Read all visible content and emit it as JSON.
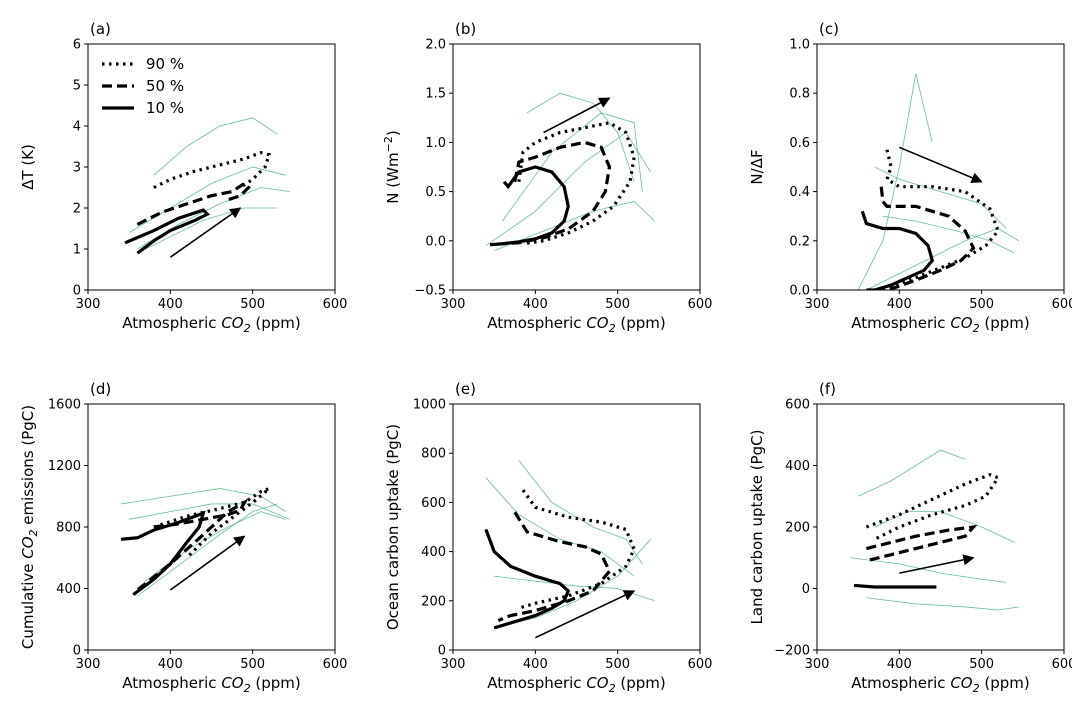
{
  "chart_data": [
    {
      "type": "line",
      "panel_label": "(a)",
      "x_label": [
        "Atmospheric ",
        "CO",
        "2",
        " (ppm)"
      ],
      "y_label": [
        "ΔT (K)"
      ],
      "xlim": [
        300,
        600
      ],
      "xticks": [
        300,
        400,
        500,
        600
      ],
      "ylim": [
        0,
        6
      ],
      "yticks": [
        0,
        1,
        2,
        3,
        4,
        5,
        6
      ],
      "legend": "upper left",
      "ensemble_color": "#4db380",
      "ensemble": [
        {
          "x": [
            350,
            400,
            450,
            500,
            540
          ],
          "y": [
            1.4,
            2.0,
            2.6,
            3.0,
            2.8
          ]
        },
        {
          "x": [
            360,
            410,
            460,
            510,
            545
          ],
          "y": [
            1.0,
            1.6,
            2.1,
            2.5,
            2.4
          ]
        },
        {
          "x": [
            380,
            420,
            460,
            500,
            530
          ],
          "y": [
            2.8,
            3.5,
            4.0,
            4.2,
            3.8
          ]
        },
        {
          "x": [
            360,
            400,
            440,
            490,
            530
          ],
          "y": [
            0.9,
            1.3,
            1.7,
            2.0,
            2.0
          ]
        }
      ],
      "series": [
        {
          "name": "90 %",
          "color": "#000000",
          "linestyle": "dotted",
          "x": [
            380,
            400,
            430,
            460,
            490,
            510,
            520,
            515,
            500,
            485
          ],
          "y": [
            2.5,
            2.7,
            2.9,
            3.05,
            3.2,
            3.35,
            3.3,
            3.0,
            2.7,
            2.5
          ]
        },
        {
          "name": "50 %",
          "color": "#000000",
          "linestyle": "dashed",
          "x": [
            360,
            390,
            420,
            450,
            475,
            490,
            495,
            485,
            470
          ],
          "y": [
            1.6,
            1.9,
            2.1,
            2.3,
            2.4,
            2.6,
            2.5,
            2.3,
            2.2
          ]
        },
        {
          "name": "10 %",
          "color": "#000000",
          "linestyle": "solid",
          "x": [
            345,
            380,
            410,
            440,
            445,
            430,
            400,
            380,
            360
          ],
          "y": [
            1.15,
            1.45,
            1.75,
            1.95,
            1.85,
            1.7,
            1.45,
            1.2,
            0.9
          ]
        }
      ]
    },
    {
      "type": "line",
      "panel_label": "(b)",
      "x_label": [
        "Atmospheric ",
        "CO",
        "2",
        " (ppm)"
      ],
      "y_label": [
        "N (Wm",
        "−2",
        ")"
      ],
      "xlim": [
        300,
        600
      ],
      "xticks": [
        300,
        400,
        500,
        600
      ],
      "ylim": [
        -0.5,
        2.0
      ],
      "yticks": [
        {
          "value": -0.5,
          "label": "−0.5"
        },
        {
          "value": 0,
          "label": "0.0"
        },
        0.5,
        {
          "value": 1,
          "label": "1.0"
        },
        1.5,
        {
          "value": 2,
          "label": "2.0"
        }
      ],
      "ensemble_color": "#4db380",
      "ensemble": [
        {
          "x": [
            340,
            400,
            460,
            510,
            540
          ],
          "y": [
            -0.05,
            0.3,
            0.8,
            1.1,
            0.7
          ]
        },
        {
          "x": [
            360,
            420,
            480,
            520,
            530
          ],
          "y": [
            0.2,
            0.9,
            1.3,
            1.2,
            0.5
          ]
        },
        {
          "x": [
            390,
            430,
            470,
            500,
            520
          ],
          "y": [
            1.3,
            1.5,
            1.4,
            1.1,
            0.6
          ]
        },
        {
          "x": [
            350,
            410,
            470,
            520,
            545
          ],
          "y": [
            -0.1,
            0.1,
            0.3,
            0.4,
            0.2
          ]
        }
      ],
      "series": [
        {
          "name": "90 %",
          "color": "#000000",
          "linestyle": "dotted",
          "x": [
            380,
            385,
            400,
            430,
            460,
            490,
            510,
            520,
            515,
            495,
            470,
            440,
            410,
            385
          ],
          "y": [
            0.6,
            0.9,
            1.0,
            1.1,
            1.15,
            1.2,
            1.1,
            0.85,
            0.6,
            0.35,
            0.2,
            0.08,
            0.0,
            -0.03
          ]
        },
        {
          "name": "50 %",
          "color": "#000000",
          "linestyle": "dashed",
          "x": [
            375,
            380,
            400,
            430,
            460,
            480,
            490,
            485,
            470,
            440,
            410,
            380,
            360
          ],
          "y": [
            0.6,
            0.8,
            0.85,
            0.95,
            1.0,
            0.95,
            0.75,
            0.5,
            0.3,
            0.12,
            0.03,
            -0.02,
            -0.03
          ]
        },
        {
          "name": "10 %",
          "color": "#000000",
          "linestyle": "solid",
          "x": [
            362,
            367,
            380,
            400,
            420,
            435,
            440,
            435,
            420,
            400,
            380,
            360,
            345
          ],
          "y": [
            0.6,
            0.55,
            0.7,
            0.75,
            0.7,
            0.55,
            0.35,
            0.2,
            0.08,
            0.02,
            -0.01,
            -0.03,
            -0.04
          ]
        }
      ]
    },
    {
      "type": "line",
      "panel_label": "(c)",
      "x_label": [
        "Atmospheric ",
        "CO",
        "2",
        " (ppm)"
      ],
      "y_label": [
        "N/ΔF"
      ],
      "xlim": [
        300,
        600
      ],
      "xticks": [
        300,
        400,
        500,
        600
      ],
      "ylim": [
        0,
        1
      ],
      "yticks": [
        {
          "value": 0,
          "label": "0.0"
        },
        0.2,
        0.4,
        0.6,
        0.8,
        {
          "value": 1,
          "label": "1.0"
        }
      ],
      "ensemble_color": "#4db380",
      "ensemble": [
        {
          "x": [
            350,
            380,
            400,
            420,
            440
          ],
          "y": [
            0.0,
            0.2,
            0.5,
            0.88,
            0.6
          ]
        },
        {
          "x": [
            360,
            420,
            480,
            520,
            545
          ],
          "y": [
            0.0,
            0.1,
            0.2,
            0.25,
            0.2
          ]
        },
        {
          "x": [
            370,
            400,
            450,
            500,
            530
          ],
          "y": [
            0.5,
            0.45,
            0.4,
            0.35,
            0.25
          ]
        },
        {
          "x": [
            380,
            420,
            470,
            510,
            540
          ],
          "y": [
            0.3,
            0.28,
            0.24,
            0.2,
            0.15
          ]
        }
      ],
      "series": [
        {
          "name": "90 %",
          "color": "#000000",
          "linestyle": "dotted",
          "x": [
            385,
            390,
            385,
            400,
            440,
            480,
            510,
            520,
            505,
            480,
            450,
            420,
            395,
            380
          ],
          "y": [
            0.57,
            0.5,
            0.45,
            0.42,
            0.42,
            0.4,
            0.33,
            0.24,
            0.18,
            0.13,
            0.09,
            0.05,
            0.02,
            0.0
          ]
        },
        {
          "name": "50 %",
          "color": "#000000",
          "linestyle": "dashed",
          "x": [
            378,
            380,
            385,
            420,
            460,
            480,
            490,
            475,
            450,
            420,
            395,
            375
          ],
          "y": [
            0.42,
            0.36,
            0.34,
            0.34,
            0.3,
            0.24,
            0.17,
            0.12,
            0.08,
            0.04,
            0.01,
            0.0
          ]
        },
        {
          "name": "10 %",
          "color": "#000000",
          "linestyle": "solid",
          "x": [
            355,
            360,
            380,
            400,
            420,
            435,
            440,
            430,
            410,
            390,
            370,
            360
          ],
          "y": [
            0.32,
            0.27,
            0.25,
            0.25,
            0.23,
            0.18,
            0.12,
            0.08,
            0.05,
            0.02,
            0.0,
            0.0
          ]
        }
      ]
    },
    {
      "type": "line",
      "panel_label": "(d)",
      "x_label": [
        "Atmospheric ",
        "CO",
        "2",
        " (ppm)"
      ],
      "y_label": [
        "Cumulative ",
        "CO",
        "2",
        " emissions (PgC)"
      ],
      "xlim": [
        300,
        600
      ],
      "xticks": [
        300,
        400,
        500,
        600
      ],
      "ylim": [
        0,
        1600
      ],
      "yticks": [
        0,
        400,
        800,
        1200,
        1600
      ],
      "ensemble_color": "#4db380",
      "ensemble": [
        {
          "x": [
            340,
            400,
            460,
            510,
            540
          ],
          "y": [
            950,
            1000,
            1050,
            1000,
            900
          ]
        },
        {
          "x": [
            360,
            410,
            460,
            500,
            530
          ],
          "y": [
            350,
            550,
            750,
            900,
            950
          ]
        },
        {
          "x": [
            350,
            400,
            450,
            500,
            545
          ],
          "y": [
            850,
            900,
            950,
            950,
            850
          ]
        },
        {
          "x": [
            370,
            420,
            470,
            510,
            540
          ],
          "y": [
            450,
            650,
            800,
            900,
            850
          ]
        }
      ],
      "series": [
        {
          "name": "90 %",
          "color": "#000000",
          "linestyle": "dotted",
          "x": [
            380,
            420,
            460,
            490,
            510,
            520,
            505,
            480,
            450,
            420
          ],
          "y": [
            800,
            870,
            920,
            960,
            1030,
            1050,
            980,
            880,
            760,
            600
          ]
        },
        {
          "name": "50 %",
          "color": "#000000",
          "linestyle": "dashed",
          "x": [
            380,
            410,
            440,
            470,
            485,
            490,
            470,
            440,
            400,
            360
          ],
          "y": [
            800,
            820,
            850,
            880,
            910,
            960,
            900,
            750,
            560,
            390
          ]
        },
        {
          "name": "10 %",
          "color": "#000000",
          "linestyle": "solid",
          "x": [
            340,
            360,
            380,
            410,
            430,
            440,
            435,
            420,
            400,
            380,
            355
          ],
          "y": [
            720,
            730,
            780,
            830,
            870,
            890,
            800,
            700,
            560,
            460,
            360
          ]
        }
      ]
    },
    {
      "type": "line",
      "panel_label": "(e)",
      "x_label": [
        "Atmospheric ",
        "CO",
        "2",
        " (ppm)"
      ],
      "y_label": [
        "Ocean carbon uptake (PgC)"
      ],
      "xlim": [
        300,
        600
      ],
      "xticks": [
        300,
        400,
        500,
        600
      ],
      "ylim": [
        0,
        1000
      ],
      "yticks": [
        0,
        200,
        400,
        600,
        800,
        1000
      ],
      "ensemble_color": "#4db380",
      "ensemble": [
        {
          "x": [
            340,
            380,
            430,
            480,
            520
          ],
          "y": [
            700,
            550,
            450,
            400,
            300
          ]
        },
        {
          "x": [
            360,
            400,
            450,
            500,
            540
          ],
          "y": [
            100,
            130,
            200,
            300,
            450
          ]
        },
        {
          "x": [
            380,
            420,
            470,
            510,
            530
          ],
          "y": [
            770,
            600,
            500,
            450,
            350
          ]
        },
        {
          "x": [
            350,
            400,
            450,
            500,
            545
          ],
          "y": [
            300,
            280,
            260,
            250,
            200
          ]
        }
      ],
      "series": [
        {
          "name": "90 %",
          "color": "#000000",
          "linestyle": "dotted",
          "x": [
            385,
            400,
            440,
            480,
            510,
            520,
            510,
            480,
            440,
            400,
            380
          ],
          "y": [
            650,
            580,
            540,
            520,
            490,
            410,
            340,
            270,
            220,
            190,
            170
          ]
        },
        {
          "name": "50 %",
          "color": "#000000",
          "linestyle": "dashed",
          "x": [
            375,
            390,
            430,
            460,
            480,
            490,
            470,
            440,
            400,
            370,
            355
          ],
          "y": [
            560,
            480,
            440,
            420,
            390,
            320,
            240,
            200,
            160,
            140,
            120
          ]
        },
        {
          "name": "10 %",
          "color": "#000000",
          "linestyle": "solid",
          "x": [
            340,
            350,
            370,
            400,
            430,
            440,
            435,
            420,
            400,
            370,
            350
          ],
          "y": [
            490,
            400,
            340,
            300,
            270,
            240,
            200,
            170,
            140,
            110,
            90
          ]
        }
      ]
    },
    {
      "type": "line",
      "panel_label": "(f)",
      "x_label": [
        "Atmospheric ",
        "CO",
        "2",
        " (ppm)"
      ],
      "y_label": [
        "Land carbon uptake (PgC)"
      ],
      "xlim": [
        300,
        600
      ],
      "xticks": [
        300,
        400,
        500,
        600
      ],
      "ylim": [
        -200,
        600
      ],
      "yticks": [
        {
          "value": -200,
          "label": "−200"
        },
        0,
        200,
        400,
        600
      ],
      "ensemble_color": "#4db380",
      "ensemble": [
        {
          "x": [
            350,
            390,
            420,
            450,
            480
          ],
          "y": [
            300,
            350,
            400,
            450,
            420
          ]
        },
        {
          "x": [
            360,
            420,
            480,
            520,
            545
          ],
          "y": [
            -30,
            -50,
            -60,
            -70,
            -60
          ]
        },
        {
          "x": [
            340,
            400,
            450,
            500,
            530
          ],
          "y": [
            100,
            80,
            50,
            30,
            20
          ]
        },
        {
          "x": [
            370,
            410,
            450,
            500,
            540
          ],
          "y": [
            200,
            250,
            250,
            200,
            150
          ]
        }
      ],
      "series": [
        {
          "name": "90 %",
          "color": "#000000",
          "linestyle": "dotted",
          "x": [
            360,
            400,
            440,
            480,
            510,
            520,
            505,
            480,
            440,
            400,
            370
          ],
          "y": [
            200,
            240,
            290,
            340,
            370,
            360,
            300,
            270,
            240,
            200,
            160
          ]
        },
        {
          "name": "50 %",
          "color": "#000000",
          "linestyle": "dashed",
          "x": [
            360,
            390,
            420,
            460,
            490,
            480,
            450,
            420,
            390,
            360
          ],
          "y": [
            130,
            150,
            170,
            190,
            200,
            170,
            150,
            130,
            110,
            90
          ]
        },
        {
          "name": "10 %",
          "color": "#000000",
          "linestyle": "solid",
          "x": [
            345,
            370,
            400,
            430,
            445
          ],
          "y": [
            10,
            5,
            5,
            5,
            5
          ]
        }
      ]
    }
  ]
}
